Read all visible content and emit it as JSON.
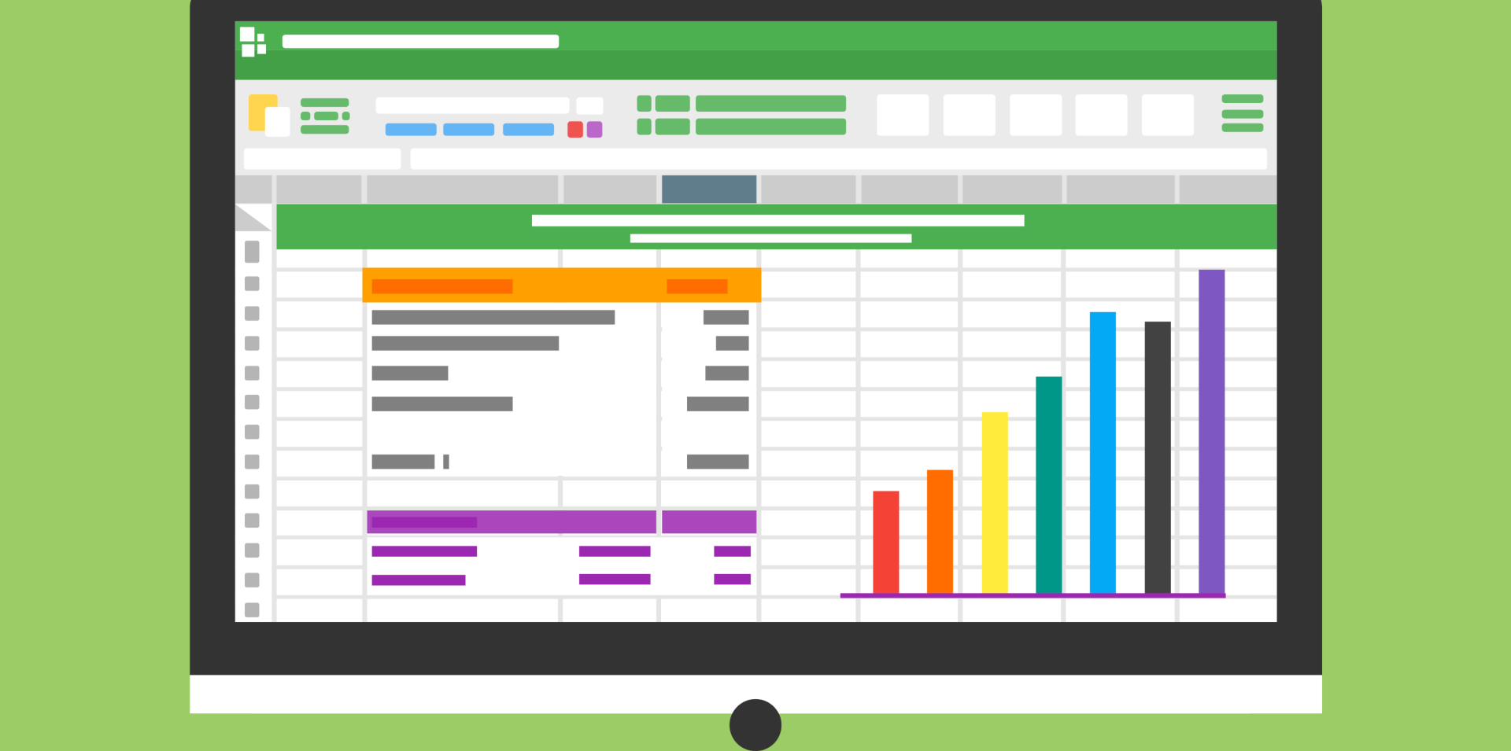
{
  "colors": {
    "background": "#9ccc65",
    "bezel": "#333333",
    "title_bar": "#4caf50",
    "ribbon_band": "#43a047",
    "ribbon": "#ebebeb",
    "selected_column": "#607d8b",
    "header_row": "#ff9f00",
    "total_row": "#ab47bc"
  },
  "icons": [
    "spreadsheet-app-icon",
    "paste-icon"
  ],
  "selected_column_index": 4,
  "chart_data": {
    "type": "bar",
    "categories": [
      "",
      "",
      "",
      "",
      "",
      "",
      ""
    ],
    "values": [
      106,
      128,
      188,
      225,
      292,
      282,
      336
    ],
    "colors": [
      "#f44336",
      "#ff6d00",
      "#ffeb3b",
      "#009688",
      "#03a9f4",
      "#424242",
      "#7e57c2"
    ],
    "axis_color": "#9c27b0",
    "grid": false,
    "title": "",
    "xlabel": "",
    "ylabel": ""
  }
}
